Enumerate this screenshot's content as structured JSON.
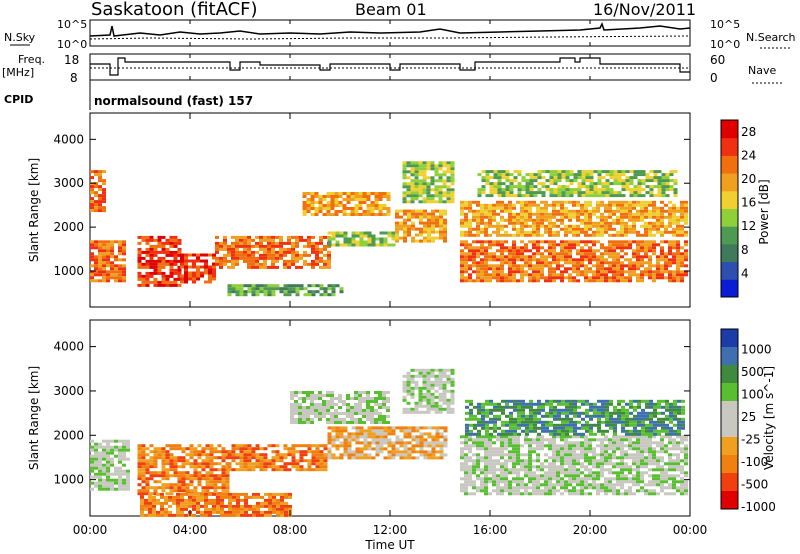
{
  "header": {
    "station": "Saskatoon (fitACF)",
    "beam": "Beam 01",
    "date": "16/Nov/2011"
  },
  "top_panels": {
    "nsky_label": "N.Sky",
    "nsky_ticks": [
      "10^5",
      "10^0"
    ],
    "nsearch_label": "N.Search",
    "nsearch_ticks": [
      "10^5",
      "10^0"
    ],
    "freq_label_line1": "Freq.",
    "freq_label_line2": "[MHz]",
    "freq_ticks": [
      "18",
      "8"
    ],
    "nave_label": "Nave",
    "nave_ticks": [
      "60",
      "0"
    ],
    "cpid_label": "CPID",
    "cpid_text": "normalsound (fast) 157"
  },
  "colors": {
    "power_scale": [
      "#0a1cd6",
      "#2d4fb0",
      "#3f7a5c",
      "#4f9a52",
      "#8fcf3a",
      "#f0d030",
      "#f0a020",
      "#f07010",
      "#f03010",
      "#e00000"
    ],
    "velocity_scale": [
      "#1c3ca8",
      "#3f6fb0",
      "#3f8a3f",
      "#58c030",
      "#c8c8c0",
      "#c8c8c0",
      "#f0a020",
      "#f08010",
      "#f04010",
      "#e00000"
    ]
  },
  "chart_data": [
    {
      "type": "heatmap",
      "title": "",
      "xlabel": "Time UT",
      "ylabel": "Slant Range [km]",
      "xticks": [
        "00:00",
        "04:00",
        "08:00",
        "12:00",
        "16:00",
        "20:00",
        "00:00"
      ],
      "yticks": [
        "1000",
        "2000",
        "3000",
        "4000"
      ],
      "xlim_hours": [
        0,
        24
      ],
      "ylim_km": [
        180,
        4600
      ],
      "colorbar_label": "Power [dB]",
      "colorbar_ticks": [
        "4",
        "8",
        "12",
        "16",
        "20",
        "24",
        "28"
      ],
      "colorbar_range": [
        0,
        30
      ],
      "regions": [
        {
          "t0": 0.0,
          "t1": 1.4,
          "r0": 800,
          "r1": 1700,
          "value": 22
        },
        {
          "t0": 0.0,
          "t1": 0.6,
          "r0": 2400,
          "r1": 3300,
          "value": 24
        },
        {
          "t0": 1.9,
          "t1": 3.6,
          "r0": 700,
          "r1": 1800,
          "value": 28
        },
        {
          "t0": 3.6,
          "t1": 5.0,
          "r0": 750,
          "r1": 1400,
          "value": 27
        },
        {
          "t0": 5.0,
          "t1": 9.5,
          "r0": 1100,
          "r1": 1800,
          "value": 22
        },
        {
          "t0": 5.5,
          "t1": 10.0,
          "r0": 450,
          "r1": 700,
          "value": 10
        },
        {
          "t0": 8.5,
          "t1": 12.0,
          "r0": 2300,
          "r1": 2800,
          "value": 19
        },
        {
          "t0": 9.5,
          "t1": 12.2,
          "r0": 1600,
          "r1": 1900,
          "value": 14
        },
        {
          "t0": 12.2,
          "t1": 14.2,
          "r0": 1700,
          "r1": 2400,
          "value": 21
        },
        {
          "t0": 12.5,
          "t1": 14.5,
          "r0": 2600,
          "r1": 3500,
          "value": 12
        },
        {
          "t0": 14.8,
          "t1": 23.8,
          "r0": 800,
          "r1": 1700,
          "value": 24
        },
        {
          "t0": 14.8,
          "t1": 23.8,
          "r0": 1800,
          "r1": 2600,
          "value": 20
        },
        {
          "t0": 15.5,
          "t1": 23.5,
          "r0": 2700,
          "r1": 3300,
          "value": 14
        }
      ]
    },
    {
      "type": "heatmap",
      "title": "",
      "xlabel": "Time UT",
      "ylabel": "Slant Range [km]",
      "xticks": [
        "00:00",
        "04:00",
        "08:00",
        "12:00",
        "16:00",
        "20:00",
        "00:00"
      ],
      "yticks": [
        "1000",
        "2000",
        "3000",
        "4000"
      ],
      "xlim_hours": [
        0,
        24
      ],
      "ylim_km": [
        180,
        4600
      ],
      "colorbar_label": "Velocity [m s^-1]",
      "colorbar_ticks": [
        "1000",
        "500",
        "100",
        "25",
        "-25",
        "-100",
        "-500",
        "-1000"
      ],
      "regions": [
        {
          "t0": 0.0,
          "t1": 1.5,
          "r0": 800,
          "r1": 1900,
          "value": 0
        },
        {
          "t0": 1.9,
          "t1": 5.5,
          "r0": 700,
          "r1": 1800,
          "value": -300
        },
        {
          "t0": 2.0,
          "t1": 8.0,
          "r0": 200,
          "r1": 700,
          "value": -150
        },
        {
          "t0": 5.5,
          "t1": 9.5,
          "r0": 1200,
          "r1": 1800,
          "value": -200
        },
        {
          "t0": 8.0,
          "t1": 12.0,
          "r0": 2300,
          "r1": 3000,
          "value": 0
        },
        {
          "t0": 9.5,
          "t1": 14.2,
          "r0": 1500,
          "r1": 2200,
          "value": -80
        },
        {
          "t0": 12.5,
          "t1": 14.5,
          "r0": 2500,
          "r1": 3500,
          "value": 0
        },
        {
          "t0": 14.8,
          "t1": 23.8,
          "r0": 700,
          "r1": 2000,
          "value": 0
        },
        {
          "t0": 15.0,
          "t1": 23.8,
          "r0": 2000,
          "r1": 2800,
          "value": 150
        }
      ]
    }
  ]
}
